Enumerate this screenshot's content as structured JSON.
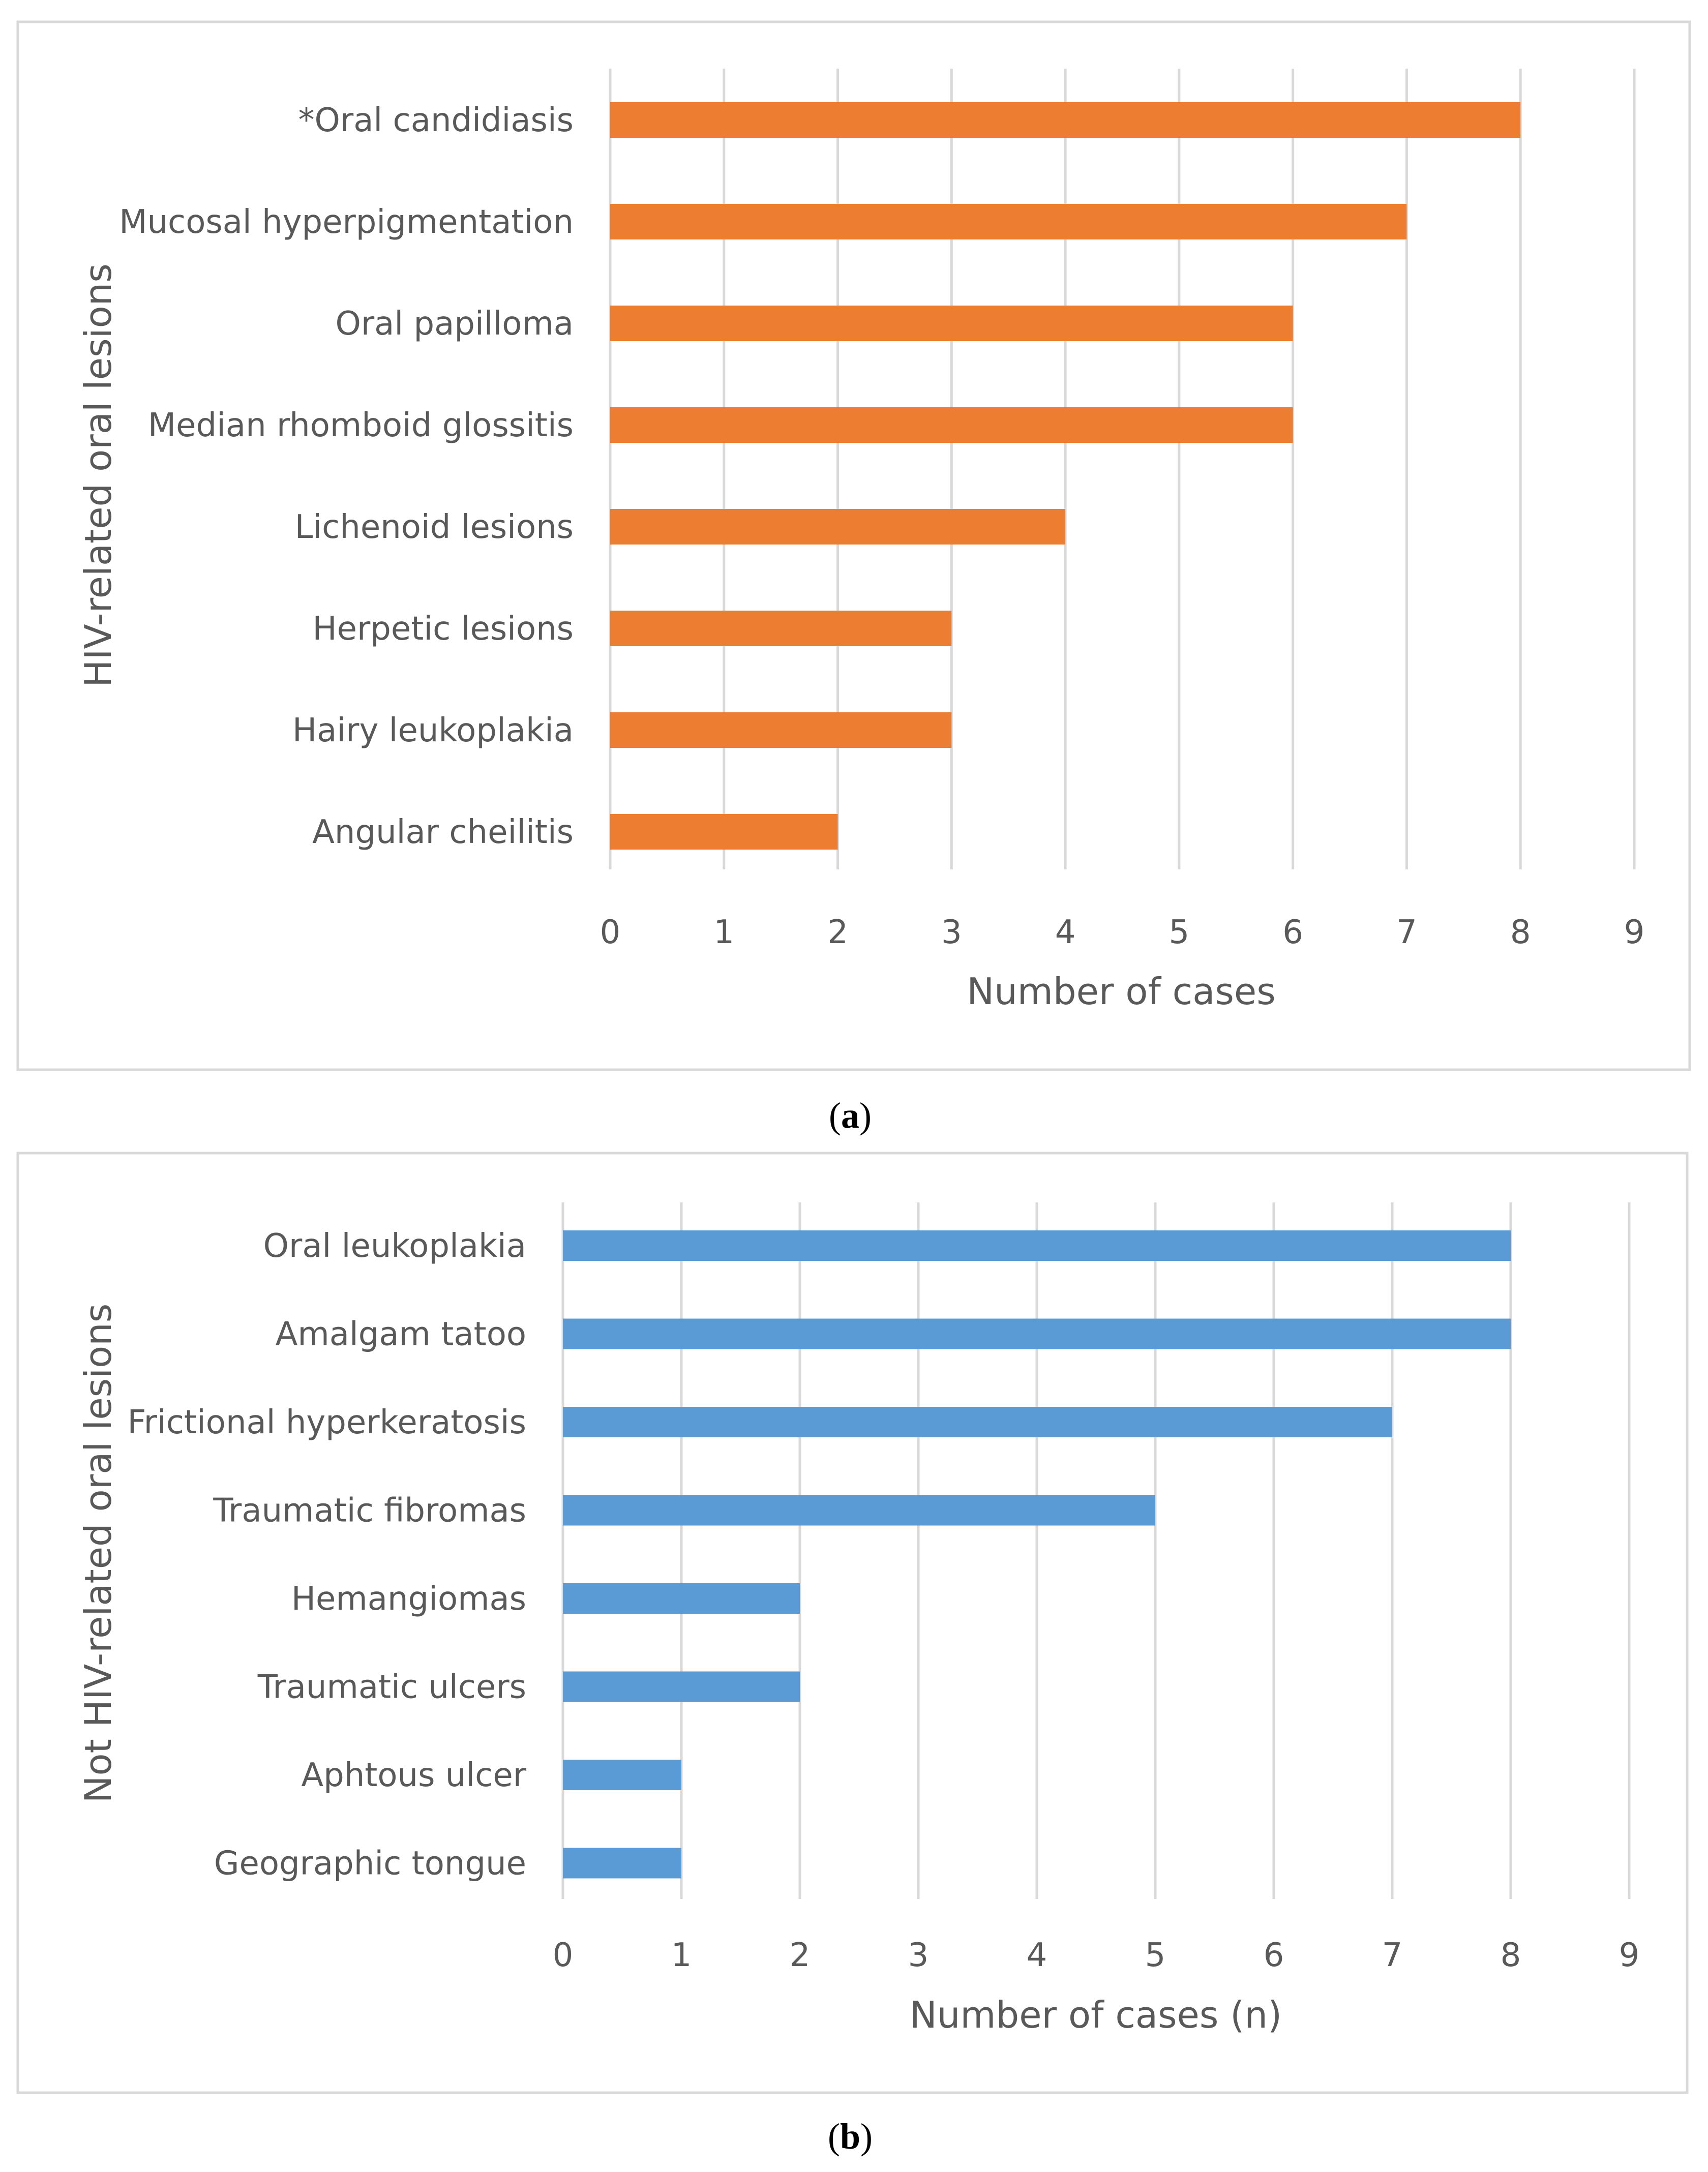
{
  "chart_data": [
    {
      "type": "bar",
      "orientation": "horizontal",
      "panel_label": "a",
      "categories": [
        "*Oral candidiasis",
        "Mucosal hyperpigmentation",
        "Oral papilloma",
        "Median rhomboid glossitis",
        "Lichenoid lesions",
        "Herpetic lesions",
        "Hairy leukoplakia",
        "Angular cheilitis"
      ],
      "values": [
        8,
        7,
        6,
        6,
        4,
        3,
        3,
        2
      ],
      "xlabel": "Number of cases",
      "ylabel": "HIV-related oral lesions",
      "xlim": [
        0,
        9
      ],
      "xticks": [
        "0",
        "1",
        "2",
        "3",
        "4",
        "5",
        "6",
        "7",
        "8",
        "9"
      ],
      "grid": true,
      "color": "#ED7D31"
    },
    {
      "type": "bar",
      "orientation": "horizontal",
      "panel_label": "b",
      "categories": [
        "Oral leukoplakia",
        "Amalgam tatoo",
        "Frictional hyperkeratosis",
        "Traumatic fibromas",
        "Hemangiomas",
        "Traumatic ulcers",
        "Aphtous ulcer",
        "Geographic tongue"
      ],
      "values": [
        8,
        8,
        7,
        5,
        2,
        2,
        1,
        1
      ],
      "xlabel": "Number of cases (n)",
      "ylabel": "Not HIV-related oral lesions",
      "xlim": [
        0,
        9
      ],
      "xticks": [
        "0",
        "1",
        "2",
        "3",
        "4",
        "5",
        "6",
        "7",
        "8",
        "9"
      ],
      "grid": true,
      "color": "#5B9BD5"
    }
  ]
}
